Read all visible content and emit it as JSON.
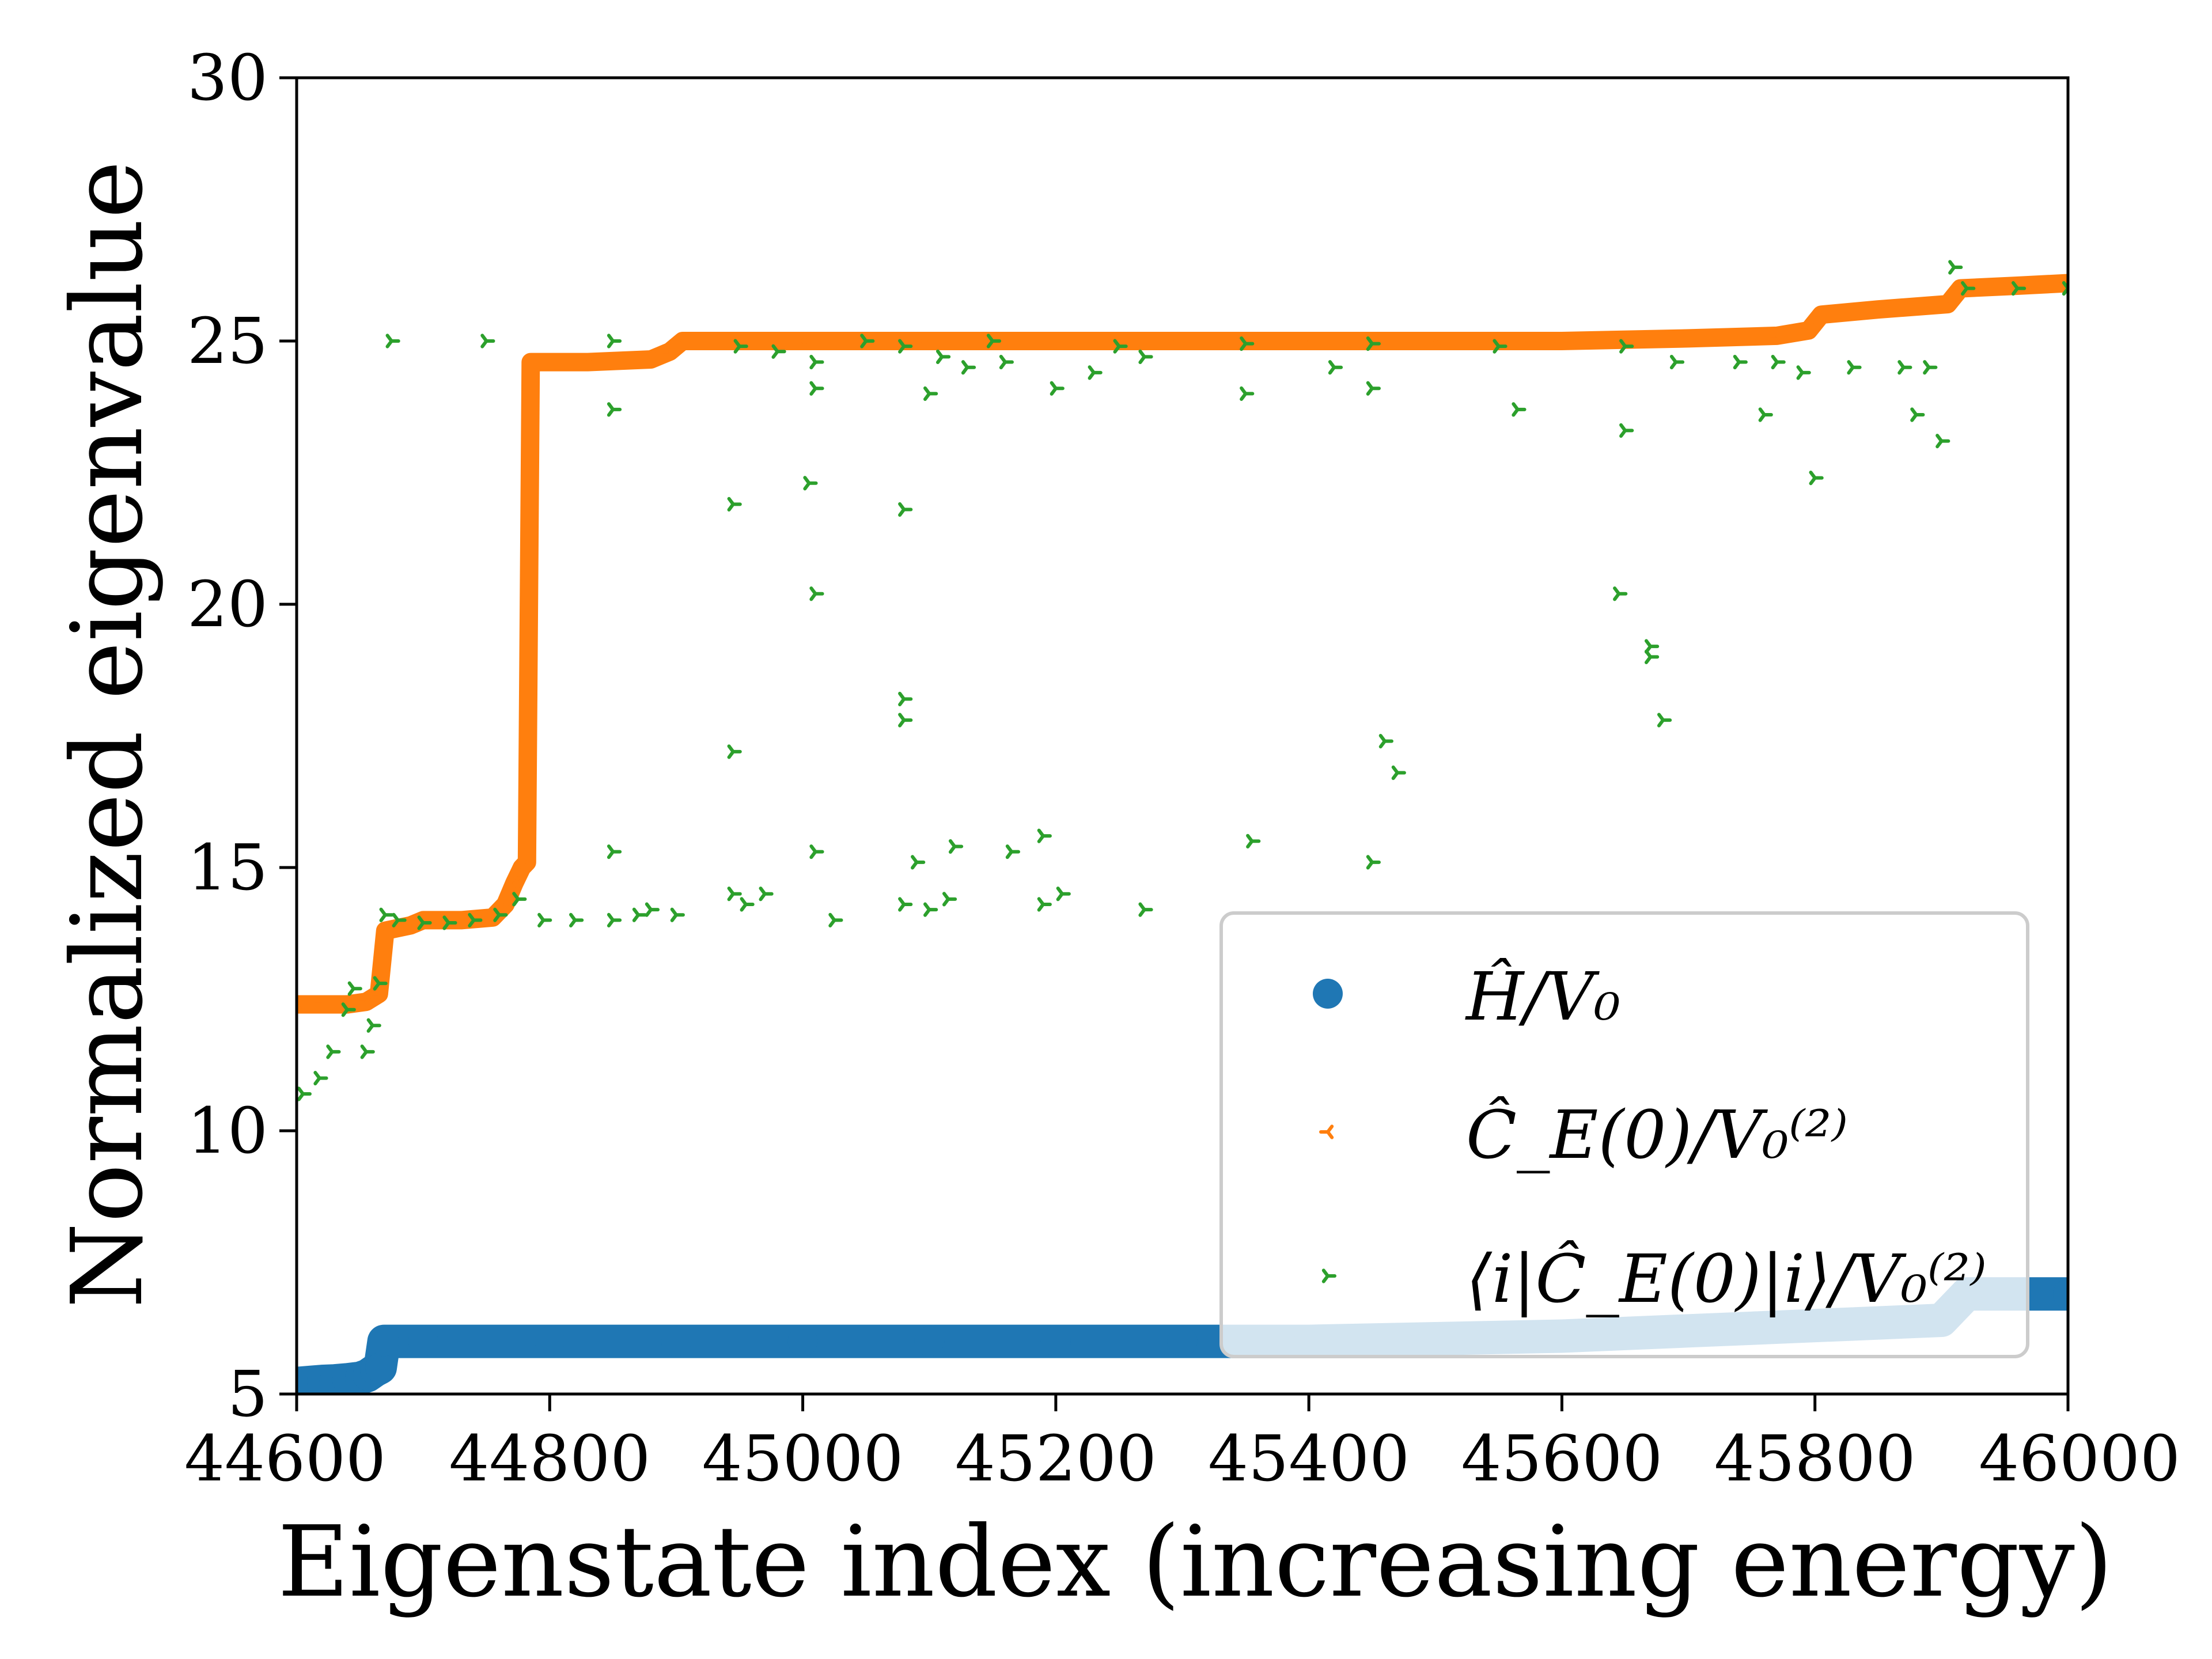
{
  "chart_data": {
    "type": "scatter",
    "title": "",
    "xlabel": "Eigenstate index (increasing energy)",
    "ylabel": "Normalized eigenvalue",
    "xlim": [
      44600,
      46000
    ],
    "ylim": [
      5,
      30
    ],
    "xticks": [
      "44600",
      "44800",
      "45000",
      "45200",
      "45400",
      "45600",
      "45800",
      "46000"
    ],
    "yticks": [
      "5",
      "10",
      "15",
      "20",
      "25",
      "30"
    ],
    "grid": false,
    "legend_position": "lower-right",
    "series": [
      {
        "name": "Ĥ/V₀",
        "color": "#1f77b4",
        "marker": "circle",
        "points": [
          [
            44600,
            5.2
          ],
          [
            44610,
            5.22
          ],
          [
            44620,
            5.24
          ],
          [
            44630,
            5.25
          ],
          [
            44640,
            5.27
          ],
          [
            44650,
            5.3
          ],
          [
            44656,
            5.35
          ],
          [
            44662,
            5.45
          ],
          [
            44666,
            5.5
          ],
          [
            44669,
            6.0
          ],
          [
            44700,
            6.0
          ],
          [
            44800,
            6.0
          ],
          [
            44900,
            6.0
          ],
          [
            45000,
            6.0
          ],
          [
            45100,
            6.0
          ],
          [
            45200,
            6.0
          ],
          [
            45300,
            6.0
          ],
          [
            45400,
            6.0
          ],
          [
            45500,
            6.05
          ],
          [
            45600,
            6.1
          ],
          [
            45650,
            6.15
          ],
          [
            45700,
            6.2
          ],
          [
            45750,
            6.25
          ],
          [
            45800,
            6.3
          ],
          [
            45850,
            6.35
          ],
          [
            45900,
            6.4
          ],
          [
            45920,
            6.9
          ],
          [
            46000,
            6.9
          ]
        ]
      },
      {
        "name": "Ĉ_E(0)/V₀⁽²⁾",
        "color": "#ff7f0e",
        "marker": "tri_left",
        "points": [
          [
            44600,
            12.4
          ],
          [
            44620,
            12.4
          ],
          [
            44640,
            12.4
          ],
          [
            44655,
            12.45
          ],
          [
            44665,
            12.6
          ],
          [
            44670,
            13.8
          ],
          [
            44690,
            13.9
          ],
          [
            44700,
            14.0
          ],
          [
            44730,
            14.0
          ],
          [
            44755,
            14.05
          ],
          [
            44765,
            14.3
          ],
          [
            44772,
            14.7
          ],
          [
            44778,
            15.0
          ],
          [
            44782,
            15.1
          ],
          [
            44785,
            24.6
          ],
          [
            44830,
            24.6
          ],
          [
            44880,
            24.65
          ],
          [
            44895,
            24.8
          ],
          [
            44905,
            25.0
          ],
          [
            45000,
            25.0
          ],
          [
            45100,
            25.0
          ],
          [
            45200,
            25.0
          ],
          [
            45300,
            25.0
          ],
          [
            45400,
            25.0
          ],
          [
            45500,
            25.0
          ],
          [
            45600,
            25.0
          ],
          [
            45700,
            25.05
          ],
          [
            45770,
            25.1
          ],
          [
            45795,
            25.2
          ],
          [
            45805,
            25.5
          ],
          [
            45850,
            25.6
          ],
          [
            45905,
            25.7
          ],
          [
            45915,
            26.0
          ],
          [
            45960,
            26.05
          ],
          [
            46000,
            26.1
          ]
        ]
      },
      {
        "name": "⟨i|Ĉ_E(0)|i⟩/V₀⁽²⁾",
        "color": "#2ca02c",
        "marker": "tri_right",
        "points": [
          [
            44605,
            10.7
          ],
          [
            44618,
            11.0
          ],
          [
            44628,
            11.5
          ],
          [
            44640,
            12.3
          ],
          [
            44645,
            12.7
          ],
          [
            44655,
            11.5
          ],
          [
            44660,
            12.0
          ],
          [
            44665,
            12.8
          ],
          [
            44670,
            14.1
          ],
          [
            44680,
            14.0
          ],
          [
            44700,
            13.95
          ],
          [
            44720,
            13.95
          ],
          [
            44740,
            14.0
          ],
          [
            44760,
            14.1
          ],
          [
            44775,
            14.4
          ],
          [
            44795,
            14.0
          ],
          [
            44820,
            14.0
          ],
          [
            44850,
            14.0
          ],
          [
            44870,
            14.1
          ],
          [
            44880,
            14.2
          ],
          [
            44900,
            14.1
          ],
          [
            44945,
            14.5
          ],
          [
            44955,
            14.3
          ],
          [
            44970,
            14.5
          ],
          [
            45025,
            14.0
          ],
          [
            45080,
            14.3
          ],
          [
            45100,
            14.2
          ],
          [
            45115,
            14.4
          ],
          [
            45190,
            14.3
          ],
          [
            45205,
            14.5
          ],
          [
            44850,
            15.3
          ],
          [
            45010,
            15.3
          ],
          [
            45090,
            15.1
          ],
          [
            45120,
            15.4
          ],
          [
            45165,
            15.3
          ],
          [
            45190,
            15.6
          ],
          [
            45270,
            14.2
          ],
          [
            45355,
            15.5
          ],
          [
            45450,
            15.1
          ],
          [
            45460,
            17.4
          ],
          [
            45470,
            16.8
          ],
          [
            45645,
            20.2
          ],
          [
            45670,
            19.0
          ],
          [
            45670,
            19.2
          ],
          [
            45680,
            17.8
          ],
          [
            44945,
            17.2
          ],
          [
            45010,
            20.2
          ],
          [
            45080,
            18.2
          ],
          [
            45080,
            17.8
          ],
          [
            45080,
            21.8
          ],
          [
            44945,
            21.9
          ],
          [
            45005,
            22.3
          ],
          [
            44850,
            23.7
          ],
          [
            45100,
            24.0
          ],
          [
            45130,
            24.5
          ],
          [
            45110,
            24.7
          ],
          [
            45160,
            24.6
          ],
          [
            45200,
            24.1
          ],
          [
            45230,
            24.4
          ],
          [
            45010,
            24.6
          ],
          [
            45010,
            24.1
          ],
          [
            44980,
            24.8
          ],
          [
            45080,
            24.9
          ],
          [
            45270,
            24.7
          ],
          [
            45350,
            24.0
          ],
          [
            45420,
            24.5
          ],
          [
            45450,
            24.1
          ],
          [
            45565,
            23.7
          ],
          [
            45650,
            23.3
          ],
          [
            45760,
            23.6
          ],
          [
            45800,
            22.4
          ],
          [
            45880,
            23.6
          ],
          [
            45900,
            23.1
          ],
          [
            45910,
            26.4
          ],
          [
            44675,
            25.0
          ],
          [
            44750,
            25.0
          ],
          [
            44850,
            25.0
          ],
          [
            44950,
            24.9
          ],
          [
            45050,
            25.0
          ],
          [
            45150,
            25.0
          ],
          [
            45250,
            24.9
          ],
          [
            45350,
            24.95
          ],
          [
            45450,
            24.95
          ],
          [
            45550,
            24.9
          ],
          [
            45650,
            24.9
          ],
          [
            45690,
            24.6
          ],
          [
            45740,
            24.6
          ],
          [
            45770,
            24.6
          ],
          [
            45790,
            24.4
          ],
          [
            45830,
            24.5
          ],
          [
            45870,
            24.5
          ],
          [
            45890,
            24.5
          ],
          [
            45920,
            26.0
          ],
          [
            45960,
            26.0
          ],
          [
            46000,
            26.0
          ]
        ]
      }
    ]
  }
}
